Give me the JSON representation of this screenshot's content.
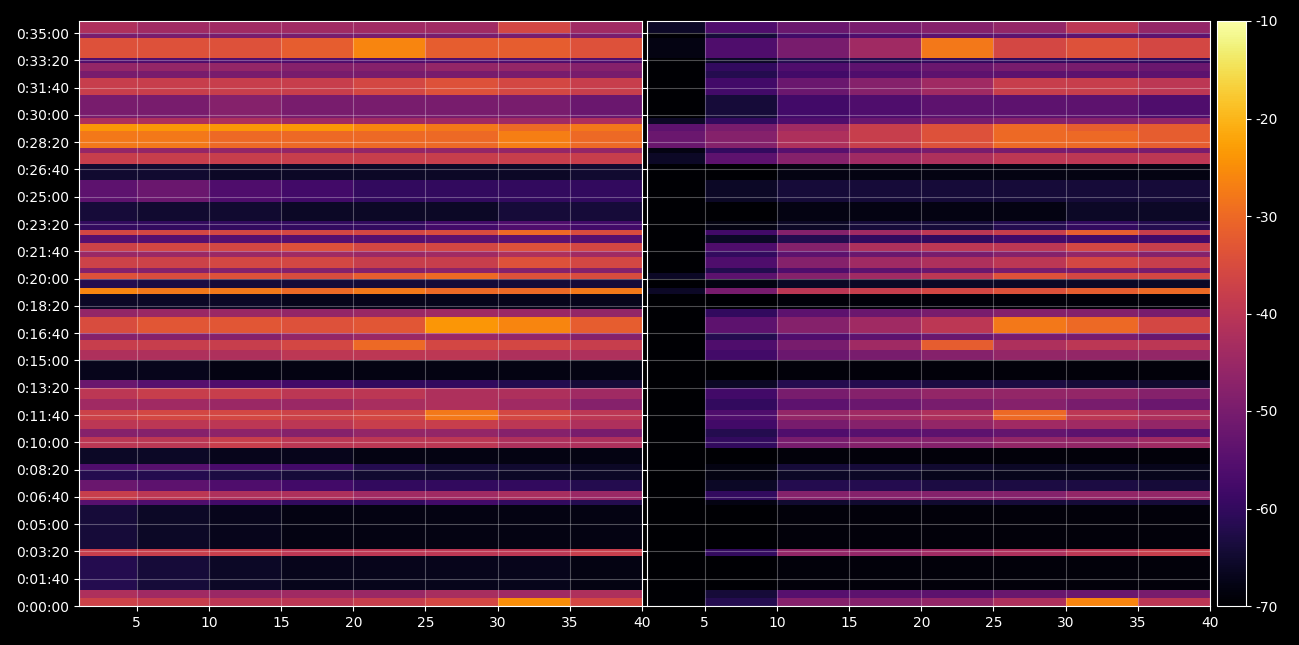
{
  "chart_data": {
    "type": "heatmap",
    "color": "inferno",
    "grid": true,
    "xlim": [
      1,
      40
    ],
    "xticks": [
      5,
      10,
      15,
      20,
      25,
      30,
      35,
      40
    ],
    "ylim": [
      0,
      2144
    ],
    "yticks": [
      {
        "value": 0,
        "label": "0:00:00"
      },
      {
        "value": 100,
        "label": "0:01:40"
      },
      {
        "value": 200,
        "label": "0:03:20"
      },
      {
        "value": 300,
        "label": "0:05:00"
      },
      {
        "value": 400,
        "label": "0:06:40"
      },
      {
        "value": 500,
        "label": "0:08:20"
      },
      {
        "value": 600,
        "label": "0:10:00"
      },
      {
        "value": 700,
        "label": "0:11:40"
      },
      {
        "value": 800,
        "label": "0:13:20"
      },
      {
        "value": 900,
        "label": "0:15:00"
      },
      {
        "value": 1000,
        "label": "0:16:40"
      },
      {
        "value": 1100,
        "label": "0:18:20"
      },
      {
        "value": 1200,
        "label": "0:20:00"
      },
      {
        "value": 1300,
        "label": "0:21:40"
      },
      {
        "value": 1400,
        "label": "0:23:20"
      },
      {
        "value": 1500,
        "label": "0:25:00"
      },
      {
        "value": 1600,
        "label": "0:26:40"
      },
      {
        "value": 1700,
        "label": "0:28:20"
      },
      {
        "value": 1800,
        "label": "0:30:00"
      },
      {
        "value": 1900,
        "label": "0:31:40"
      },
      {
        "value": 2000,
        "label": "0:33:20"
      },
      {
        "value": 2100,
        "label": "0:35:00"
      }
    ],
    "colorbar": {
      "range": [
        -70,
        -10
      ],
      "ticks": [
        -70,
        -60,
        -50,
        -40,
        -30,
        -20,
        -10
      ]
    },
    "x_edges": [
      1,
      5,
      10,
      15,
      20,
      25,
      30,
      35,
      40
    ],
    "y_edges": [
      0,
      30,
      60,
      185,
      210,
      370,
      390,
      420,
      460,
      500,
      520,
      580,
      620,
      650,
      680,
      720,
      760,
      800,
      830,
      900,
      940,
      975,
      1000,
      1060,
      1090,
      1145,
      1165,
      1200,
      1220,
      1240,
      1280,
      1300,
      1330,
      1358,
      1378,
      1410,
      1480,
      1560,
      1620,
      1660,
      1680,
      1740,
      1765,
      1790,
      1873,
      1935,
      1960,
      1990,
      2008,
      2082,
      2100,
      2144
    ],
    "panels": [
      {
        "cells": [
          [
            -37,
            -38,
            -40,
            -40,
            -38,
            -36,
            -25,
            -36
          ],
          [
            -42,
            -44,
            -45,
            -44,
            -45,
            -43,
            -44,
            -42
          ],
          [
            -62,
            -64,
            -66,
            -67,
            -67,
            -67,
            -67,
            -68
          ],
          [
            -38,
            -38,
            -38,
            -40,
            -40,
            -40,
            -40,
            -38
          ],
          [
            -64,
            -66,
            -67,
            -68,
            -68,
            -68,
            -68,
            -68
          ],
          [
            -55,
            -56,
            -58,
            -60,
            -60,
            -58,
            -60,
            -62
          ],
          [
            -38,
            -40,
            -42,
            -42,
            -44,
            -44,
            -43,
            -45
          ],
          [
            -52,
            -54,
            -56,
            -58,
            -60,
            -60,
            -60,
            -62
          ],
          [
            -62,
            -62,
            -63,
            -64,
            -65,
            -65,
            -66,
            -66
          ],
          [
            -56,
            -55,
            -57,
            -58,
            -62,
            -64,
            -65,
            -66
          ],
          [
            -66,
            -66,
            -67,
            -67,
            -68,
            -68,
            -68,
            -68
          ],
          [
            -40,
            -40,
            -38,
            -40,
            -40,
            -40,
            -42,
            -42
          ],
          [
            -48,
            -48,
            -47,
            -48,
            -46,
            -46,
            -48,
            -50
          ],
          [
            -40,
            -40,
            -40,
            -40,
            -38,
            -38,
            -40,
            -42
          ],
          [
            -37,
            -36,
            -36,
            -37,
            -36,
            -28,
            -36,
            -40
          ],
          [
            -44,
            -44,
            -45,
            -45,
            -43,
            -42,
            -44,
            -48
          ],
          [
            -40,
            -38,
            -38,
            -40,
            -40,
            -42,
            -42,
            -44
          ],
          [
            -52,
            -55,
            -56,
            -58,
            -60,
            -60,
            -62,
            -64
          ],
          [
            -67,
            -67,
            -68,
            -68,
            -68,
            -68,
            -68,
            -68
          ],
          [
            -42,
            -42,
            -42,
            -40,
            -40,
            -40,
            -42,
            -42
          ],
          [
            -38,
            -38,
            -38,
            -36,
            -30,
            -36,
            -36,
            -38
          ],
          [
            -48,
            -48,
            -48,
            -46,
            -45,
            -45,
            -46,
            -48
          ],
          [
            -35,
            -33,
            -33,
            -34,
            -33,
            -24,
            -26,
            -32
          ],
          [
            -46,
            -45,
            -45,
            -46,
            -45,
            -44,
            -45,
            -46
          ],
          [
            -66,
            -66,
            -66,
            -67,
            -67,
            -67,
            -67,
            -67
          ],
          [
            -26,
            -28,
            -28,
            -30,
            -28,
            -30,
            -30,
            -28
          ],
          [
            -62,
            -63,
            -64,
            -64,
            -64,
            -64,
            -64,
            -64
          ],
          [
            -34,
            -35,
            -34,
            -35,
            -32,
            -30,
            -34,
            -35
          ],
          [
            -48,
            -48,
            -48,
            -48,
            -48,
            -47,
            -48,
            -48
          ],
          [
            -37,
            -37,
            -36,
            -36,
            -38,
            -38,
            -34,
            -36
          ],
          [
            -45,
            -45,
            -45,
            -44,
            -45,
            -44,
            -42,
            -44
          ],
          [
            -37,
            -36,
            -36,
            -34,
            -36,
            -36,
            -34,
            -36
          ],
          [
            -55,
            -55,
            -55,
            -55,
            -55,
            -54,
            -54,
            -55
          ],
          [
            -36,
            -36,
            -36,
            -36,
            -36,
            -35,
            -30,
            -35
          ],
          [
            -60,
            -60,
            -60,
            -60,
            -60,
            -58,
            -56,
            -58
          ],
          [
            -64,
            -65,
            -65,
            -66,
            -66,
            -66,
            -64,
            -64
          ],
          [
            -54,
            -52,
            -56,
            -58,
            -60,
            -60,
            -60,
            -60
          ],
          [
            -65,
            -65,
            -66,
            -66,
            -66,
            -66,
            -66,
            -65
          ],
          [
            -38,
            -38,
            -38,
            -38,
            -38,
            -38,
            -38,
            -38
          ],
          [
            -46,
            -46,
            -46,
            -46,
            -46,
            -46,
            -46,
            -46
          ],
          [
            -28,
            -28,
            -30,
            -30,
            -30,
            -30,
            -27,
            -30
          ],
          [
            -24,
            -24,
            -24,
            -24,
            -26,
            -28,
            -30,
            -28
          ],
          [
            -42,
            -42,
            -42,
            -44,
            -44,
            -44,
            -44,
            -42
          ],
          [
            -50,
            -50,
            -48,
            -50,
            -50,
            -50,
            -50,
            -52
          ],
          [
            -38,
            -38,
            -38,
            -38,
            -36,
            -34,
            -36,
            -38
          ],
          [
            -50,
            -50,
            -50,
            -50,
            -50,
            -50,
            -50,
            -50
          ],
          [
            -46,
            -46,
            -46,
            -48,
            -48,
            -46,
            -46,
            -48
          ],
          [
            -56,
            -56,
            -56,
            -56,
            -56,
            -56,
            -56,
            -56
          ],
          [
            -34,
            -34,
            -34,
            -32,
            -26,
            -32,
            -32,
            -34
          ],
          [
            -50,
            -50,
            -50,
            -50,
            -50,
            -50,
            -50,
            -50
          ],
          [
            -42,
            -44,
            -44,
            -44,
            -44,
            -44,
            -36,
            -44
          ]
        ]
      },
      {
        "cells": [
          [
            -70,
            -62,
            -48,
            -48,
            -46,
            -42,
            -26,
            -40
          ],
          [
            -70,
            -64,
            -55,
            -54,
            -54,
            -52,
            -52,
            -50
          ],
          [
            -70,
            -70,
            -69,
            -69,
            -69,
            -69,
            -69,
            -69
          ],
          [
            -70,
            -60,
            -46,
            -46,
            -44,
            -42,
            -40,
            -38
          ],
          [
            -70,
            -70,
            -69,
            -69,
            -69,
            -69,
            -69,
            -69
          ],
          [
            -70,
            -68,
            -65,
            -65,
            -65,
            -64,
            -64,
            -64
          ],
          [
            -70,
            -60,
            -48,
            -48,
            -48,
            -48,
            -46,
            -46
          ],
          [
            -70,
            -66,
            -62,
            -62,
            -63,
            -63,
            -63,
            -64
          ],
          [
            -70,
            -68,
            -66,
            -66,
            -67,
            -67,
            -67,
            -67
          ],
          [
            -70,
            -68,
            -64,
            -64,
            -65,
            -66,
            -66,
            -67
          ],
          [
            -70,
            -70,
            -69,
            -69,
            -69,
            -69,
            -69,
            -69
          ],
          [
            -70,
            -60,
            -50,
            -48,
            -48,
            -46,
            -46,
            -44
          ],
          [
            -70,
            -62,
            -56,
            -55,
            -54,
            -53,
            -54,
            -55
          ],
          [
            -70,
            -58,
            -50,
            -48,
            -46,
            -44,
            -44,
            -46
          ],
          [
            -70,
            -56,
            -46,
            -44,
            -42,
            -30,
            -40,
            -42
          ],
          [
            -70,
            -60,
            -54,
            -52,
            -50,
            -48,
            -50,
            -52
          ],
          [
            -70,
            -58,
            -50,
            -48,
            -46,
            -46,
            -46,
            -48
          ],
          [
            -70,
            -66,
            -62,
            -62,
            -63,
            -63,
            -64,
            -65
          ],
          [
            -70,
            -70,
            -69,
            -69,
            -69,
            -69,
            -69,
            -69
          ],
          [
            -70,
            -58,
            -52,
            -50,
            -48,
            -46,
            -46,
            -46
          ],
          [
            -70,
            -56,
            -50,
            -44,
            -32,
            -42,
            -40,
            -40
          ],
          [
            -70,
            -62,
            -56,
            -54,
            -52,
            -50,
            -50,
            -52
          ],
          [
            -70,
            -54,
            -48,
            -44,
            -40,
            -28,
            -30,
            -36
          ],
          [
            -70,
            -60,
            -54,
            -52,
            -50,
            -48,
            -48,
            -50
          ],
          [
            -70,
            -70,
            -69,
            -69,
            -69,
            -69,
            -69,
            -69
          ],
          [
            -66,
            -50,
            -40,
            -38,
            -36,
            -34,
            -32,
            -30
          ],
          [
            -70,
            -68,
            -66,
            -66,
            -66,
            -66,
            -66,
            -66
          ],
          [
            -66,
            -54,
            -48,
            -44,
            -40,
            -34,
            -36,
            -36
          ],
          [
            -70,
            -62,
            -56,
            -54,
            -52,
            -50,
            -50,
            -50
          ],
          [
            -70,
            -56,
            -48,
            -44,
            -42,
            -40,
            -36,
            -38
          ],
          [
            -70,
            -60,
            -54,
            -52,
            -50,
            -48,
            -46,
            -48
          ],
          [
            -70,
            -56,
            -48,
            -42,
            -40,
            -40,
            -36,
            -38
          ],
          [
            -70,
            -66,
            -62,
            -60,
            -60,
            -58,
            -58,
            -58
          ],
          [
            -70,
            -58,
            -48,
            -44,
            -40,
            -38,
            -32,
            -38
          ],
          [
            -70,
            -68,
            -66,
            -64,
            -64,
            -62,
            -60,
            -62
          ],
          [
            -70,
            -70,
            -68,
            -68,
            -68,
            -68,
            -66,
            -66
          ],
          [
            -70,
            -66,
            -64,
            -64,
            -64,
            -64,
            -64,
            -64
          ],
          [
            -70,
            -70,
            -68,
            -68,
            -68,
            -68,
            -68,
            -68
          ],
          [
            -66,
            -54,
            -48,
            -44,
            -42,
            -40,
            -40,
            -40
          ],
          [
            -68,
            -60,
            -55,
            -52,
            -50,
            -50,
            -50,
            -50
          ],
          [
            -52,
            -48,
            -42,
            -38,
            -34,
            -30,
            -30,
            -32
          ],
          [
            -54,
            -50,
            -44,
            -38,
            -34,
            -30,
            -32,
            -32
          ],
          [
            -66,
            -60,
            -56,
            -52,
            -50,
            -48,
            -48,
            -46
          ],
          [
            -70,
            -64,
            -58,
            -56,
            -54,
            -54,
            -54,
            -56
          ],
          [
            -70,
            -58,
            -52,
            -48,
            -44,
            -38,
            -38,
            -40
          ],
          [
            -70,
            -62,
            -58,
            -56,
            -54,
            -54,
            -54,
            -54
          ],
          [
            -70,
            -60,
            -56,
            -54,
            -52,
            -50,
            -50,
            -52
          ],
          [
            -70,
            -66,
            -62,
            -62,
            -60,
            -60,
            -60,
            -60
          ],
          [
            -68,
            -56,
            -50,
            -44,
            -28,
            -36,
            -34,
            -36
          ],
          [
            -70,
            -64,
            -58,
            -56,
            -54,
            -54,
            -54,
            -54
          ],
          [
            -66,
            -56,
            -52,
            -50,
            -48,
            -46,
            -40,
            -46
          ]
        ]
      }
    ]
  }
}
